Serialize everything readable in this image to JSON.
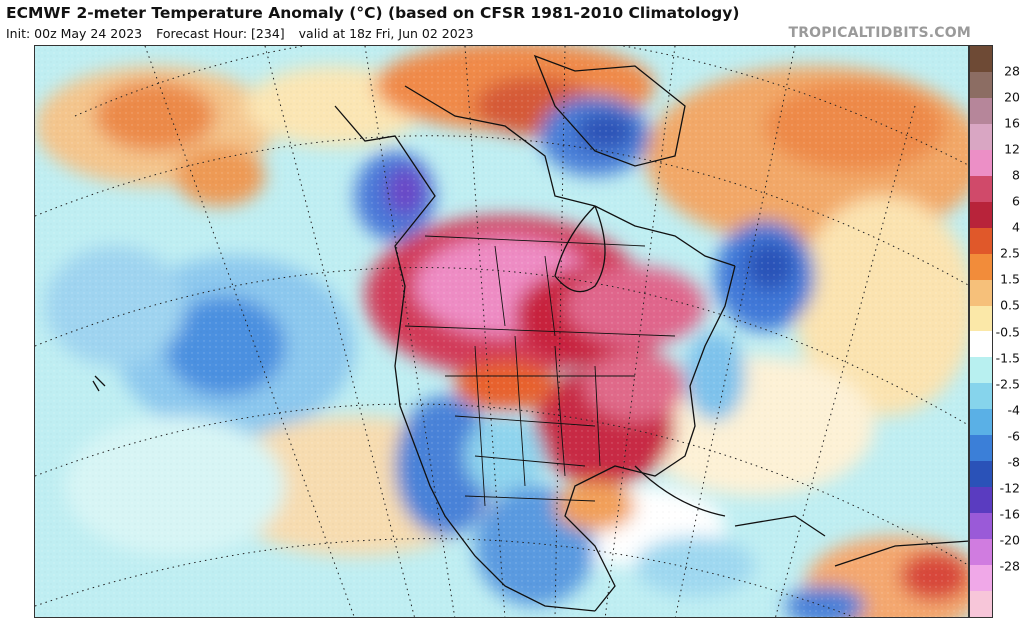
{
  "header": {
    "title": "ECMWF 2-meter Temperature Anomaly (°C) (based on CFSR 1981-2010 Climatology)",
    "init": "Init: 00z May 24 2023",
    "forecast_hour": "Forecast Hour: [234]",
    "valid": "valid at 18z Fri, Jun 02 2023",
    "brand": "TROPICALTIDBITS.COM"
  },
  "map": {
    "region": "North America",
    "variable": "2-meter temperature anomaly",
    "units": "°C"
  },
  "colorbar": {
    "labels": [
      "28",
      "20",
      "16",
      "12",
      "8",
      "6",
      "4",
      "2.5",
      "1.5",
      "0.5",
      "-0.5",
      "-1.5",
      "-2.5",
      "-4",
      "-6",
      "-8",
      "-12",
      "-16",
      "-20",
      "-28"
    ],
    "colors": [
      "#6e4a35",
      "#8c6d63",
      "#b6869a",
      "#d9a6c3",
      "#ec8fc6",
      "#d04a6a",
      "#b8233a",
      "#e0582a",
      "#f28c3a",
      "#f6c07a",
      "#fbe8a8",
      "#ffffff",
      "#b8f0f0",
      "#86d4ec",
      "#5ab0e6",
      "#3b7fd8",
      "#2a52b8",
      "#5a3cc0",
      "#9a5ad8",
      "#d07ce0",
      "#f0a8e8",
      "#f7c6d9"
    ]
  }
}
